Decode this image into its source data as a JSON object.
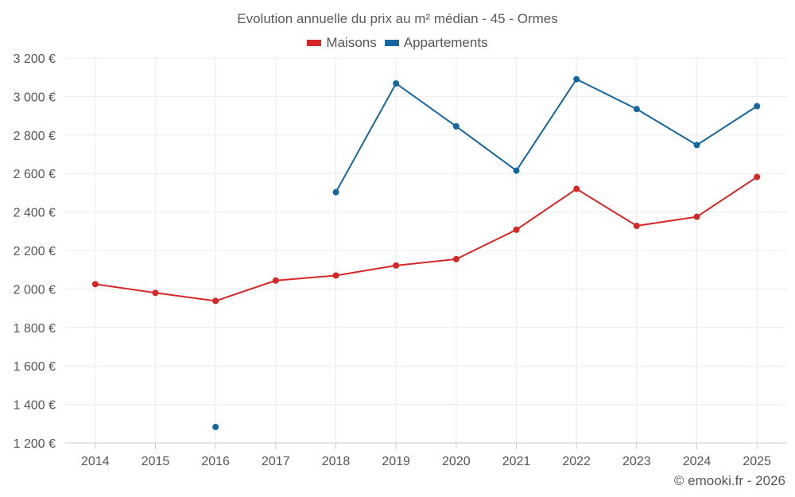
{
  "chart_data": {
    "type": "line",
    "title": "Evolution annuelle du prix au m² médian - 45 - Ormes",
    "categories": [
      "2014",
      "2015",
      "2016",
      "2017",
      "2018",
      "2019",
      "2020",
      "2021",
      "2022",
      "2023",
      "2024",
      "2025"
    ],
    "series": [
      {
        "name": "Maisons",
        "color": "#d62728",
        "values": [
          2025,
          1980,
          1938,
          2044,
          2070,
          2122,
          2155,
          2308,
          2520,
          2328,
          2375,
          2582
        ]
      },
      {
        "name": "Appartements",
        "color": "#1366a0",
        "values": [
          null,
          null,
          1283,
          null,
          2503,
          3068,
          2845,
          2615,
          3090,
          2935,
          2748,
          2950
        ]
      }
    ],
    "ylim": [
      1200,
      3200
    ],
    "yticks": [
      1200,
      1400,
      1600,
      1800,
      2000,
      2200,
      2400,
      2600,
      2800,
      3000,
      3200
    ],
    "ytick_labels": [
      "1 200 €",
      "1 400 €",
      "1 600 €",
      "1 800 €",
      "2 000 €",
      "2 200 €",
      "2 400 €",
      "2 600 €",
      "2 800 €",
      "3 000 €",
      "3 200 €"
    ],
    "xlabel": "",
    "ylabel": "",
    "grid": true,
    "legend_position": "top-center"
  },
  "credit": "© emooki.fr - 2026"
}
